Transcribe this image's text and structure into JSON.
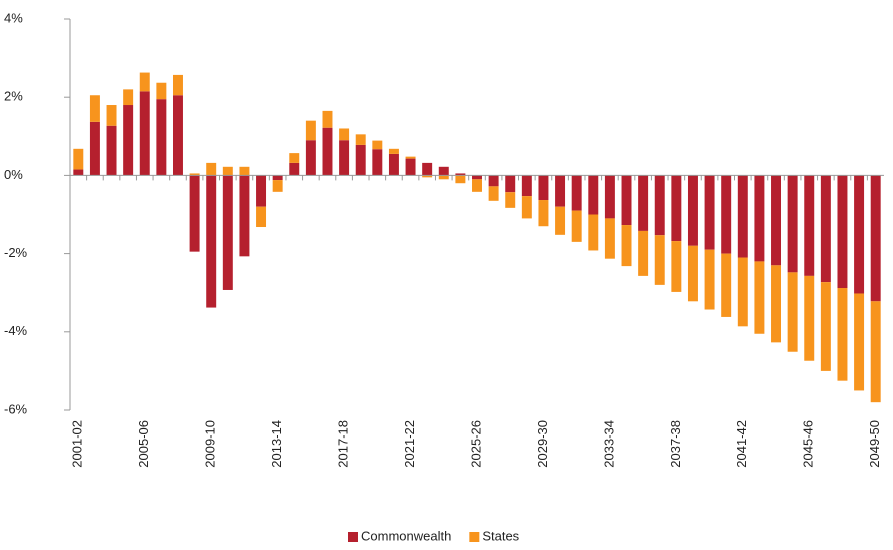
{
  "chart_data": {
    "type": "stacked_bar",
    "categories": [
      "2001-02",
      null,
      null,
      null,
      "2005-06",
      null,
      null,
      null,
      "2009-10",
      null,
      null,
      null,
      "2013-14",
      null,
      null,
      null,
      "2017-18",
      null,
      null,
      null,
      "2021-22",
      null,
      null,
      null,
      "2025-26",
      null,
      null,
      null,
      "2029-30",
      null,
      null,
      null,
      "2033-34",
      null,
      null,
      null,
      "2037-38",
      null,
      null,
      null,
      "2041-42",
      null,
      null,
      null,
      "2045-46",
      null,
      null,
      null,
      "2049-50"
    ],
    "series": [
      {
        "name": "Commonwealth",
        "color": "#b5202e",
        "values": [
          0.15,
          1.37,
          1.27,
          1.8,
          2.15,
          1.95,
          2.05,
          -1.95,
          -3.38,
          -2.93,
          -2.07,
          -0.8,
          -0.12,
          0.32,
          0.9,
          1.22,
          0.9,
          0.78,
          0.67,
          0.55,
          0.43,
          0.32,
          0.22,
          0.05,
          -0.1,
          -0.28,
          -0.43,
          -0.53,
          -0.63,
          -0.8,
          -0.9,
          -1.0,
          -1.1,
          -1.27,
          -1.42,
          -1.53,
          -1.68,
          -1.8,
          -1.9,
          -2.0,
          -2.1,
          -2.2,
          -2.3,
          -2.48,
          -2.57,
          -2.73,
          -2.88,
          -3.02,
          -3.22
        ]
      },
      {
        "name": "States",
        "color": "#f7941d",
        "values": [
          0.53,
          0.68,
          0.53,
          0.4,
          0.48,
          0.42,
          0.52,
          0.05,
          0.32,
          0.22,
          0.22,
          -0.52,
          -0.3,
          0.25,
          0.5,
          0.43,
          0.3,
          0.27,
          0.22,
          0.13,
          0.05,
          -0.05,
          -0.1,
          -0.2,
          -0.32,
          -0.37,
          -0.4,
          -0.57,
          -0.67,
          -0.72,
          -0.8,
          -0.92,
          -1.03,
          -1.05,
          -1.15,
          -1.27,
          -1.3,
          -1.42,
          -1.53,
          -1.62,
          -1.76,
          -1.85,
          -1.97,
          -2.03,
          -2.17,
          -2.27,
          -2.37,
          -2.48,
          -2.58
        ]
      }
    ],
    "ylim": [
      -6,
      4
    ],
    "yticks": [
      {
        "value": -6,
        "label": "-6%"
      },
      {
        "value": -4,
        "label": "-4%"
      },
      {
        "value": -2,
        "label": "-2%"
      },
      {
        "value": 0,
        "label": "0%"
      },
      {
        "value": 2,
        "label": "2%"
      },
      {
        "value": 4,
        "label": "4%"
      }
    ],
    "legend": "bottom"
  }
}
